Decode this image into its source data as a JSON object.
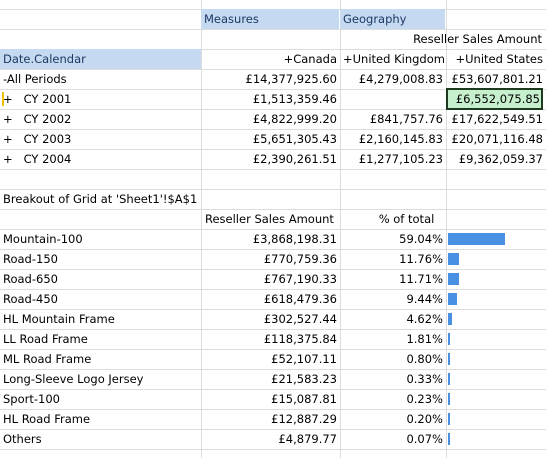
{
  "pivot": {
    "measures_label": "Measures",
    "geography_label": "Geography",
    "measure_title": "Reseller Sales Amount",
    "row_field": "Date.Calendar",
    "columns": [
      "+Canada",
      "+United Kingdom",
      "+United States"
    ],
    "rows": [
      {
        "label": "-All Periods",
        "values": [
          "£14,377,925.60",
          "£4,279,008.83",
          "£53,607,801.21"
        ]
      },
      {
        "label": "+   CY 2001",
        "values": [
          "£1,513,359.46",
          "",
          "£6,552,075.85"
        ]
      },
      {
        "label": "+   CY 2002",
        "values": [
          "£4,822,999.20",
          "£841,757.76",
          "£17,622,549.51"
        ]
      },
      {
        "label": "+   CY 2003",
        "values": [
          "£5,651,305.43",
          "£2,160,145.83",
          "£20,071,116.48"
        ]
      },
      {
        "label": "+   CY 2004",
        "values": [
          "£2,390,261.51",
          "£1,277,105.23",
          "£9,362,059.37"
        ]
      }
    ]
  },
  "breakout": {
    "title": "Breakout of Grid at 'Sheet1'!$A$1",
    "col_amount": "Reseller Sales Amount",
    "col_pct": "% of total",
    "accent_color": "#4a90e2",
    "rows": [
      {
        "label": "Mountain-100",
        "amount": "£3,868,198.31",
        "pct": "59.04%",
        "share": 0.5904
      },
      {
        "label": "Road-150",
        "amount": "£770,759.36",
        "pct": "11.76%",
        "share": 0.1176
      },
      {
        "label": "Road-650",
        "amount": "£767,190.33",
        "pct": "11.71%",
        "share": 0.1171
      },
      {
        "label": "Road-450",
        "amount": "£618,479.36",
        "pct": "9.44%",
        "share": 0.0944
      },
      {
        "label": "HL Mountain Frame",
        "amount": "£302,527.44",
        "pct": "4.62%",
        "share": 0.0462
      },
      {
        "label": "LL Road Frame",
        "amount": "£118,375.84",
        "pct": "1.81%",
        "share": 0.0181
      },
      {
        "label": "ML Road Frame",
        "amount": "£52,107.11",
        "pct": "0.80%",
        "share": 0.008
      },
      {
        "label": "Long-Sleeve Logo Jersey",
        "amount": "£21,583.23",
        "pct": "0.33%",
        "share": 0.0033
      },
      {
        "label": "Sport-100",
        "amount": "£15,087.81",
        "pct": "0.23%",
        "share": 0.0023
      },
      {
        "label": "HL Road Frame",
        "amount": "£12,887.29",
        "pct": "0.20%",
        "share": 0.002
      },
      {
        "label": "Others",
        "amount": "£4,879.77",
        "pct": "0.07%",
        "share": 0.0007
      }
    ]
  }
}
